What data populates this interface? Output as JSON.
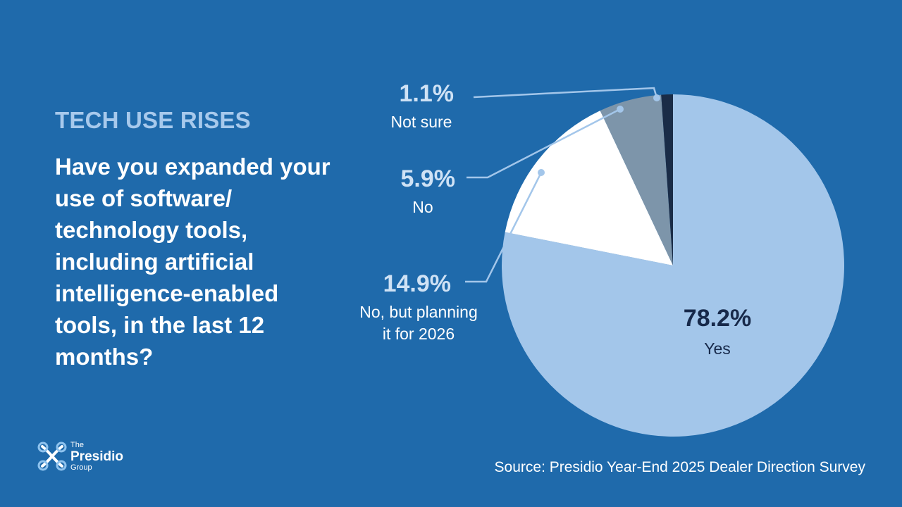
{
  "heading": {
    "kicker": "TECH USE RISES",
    "question": "Have you expanded your use of software/ technology tools, including artificial intelligence-enabled tools, in the last 12 months?"
  },
  "chart_data": {
    "type": "pie",
    "title": "",
    "slices": [
      {
        "label": "Yes",
        "pct_label": "78.2%",
        "value": 78.2,
        "color": "#a3c6ea"
      },
      {
        "label": "No, but planning it for 2026",
        "label_lines": [
          "No, but planning",
          "it for 2026"
        ],
        "pct_label": "14.9%",
        "value": 14.9,
        "color": "#ffffff"
      },
      {
        "label": "No",
        "pct_label": "5.9%",
        "value": 5.9,
        "color": "#7d95aa"
      },
      {
        "label": "Not sure",
        "pct_label": "1.1%",
        "value": 1.1,
        "color": "#1a2c47"
      }
    ],
    "start": "12 o'clock",
    "direction": "clockwise",
    "label_colors": {
      "outside_pct": "#cfe2f5",
      "outside_label": "#ffffff",
      "inside": "#17294a",
      "leader": "#a3c6ea"
    }
  },
  "footer": {
    "source": "Source: Presidio Year-End 2025 Dealer Direction Survey",
    "logo": {
      "line1": "The",
      "line2": "Presidio",
      "line3": "Group",
      "icon": "presidio-knot-icon"
    }
  }
}
